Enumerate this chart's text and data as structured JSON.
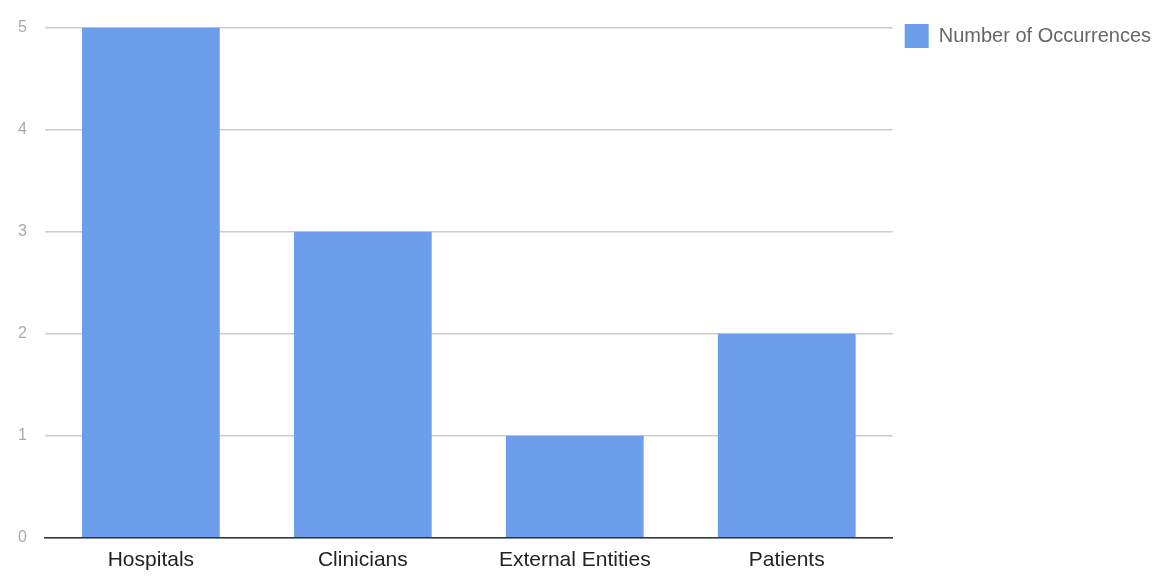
{
  "chart_data": {
    "type": "bar",
    "categories": [
      "Hospitals",
      "Clinicians",
      "External Entities",
      "Patients"
    ],
    "series": [
      {
        "name": "Number of Occurrences",
        "color": "#6d9eeb",
        "values": [
          5,
          3,
          1,
          2
        ]
      }
    ],
    "ylim": [
      0,
      5
    ],
    "yticks": [
      0,
      1,
      2,
      3,
      4,
      5
    ],
    "grid": "y",
    "legend": "top right"
  }
}
